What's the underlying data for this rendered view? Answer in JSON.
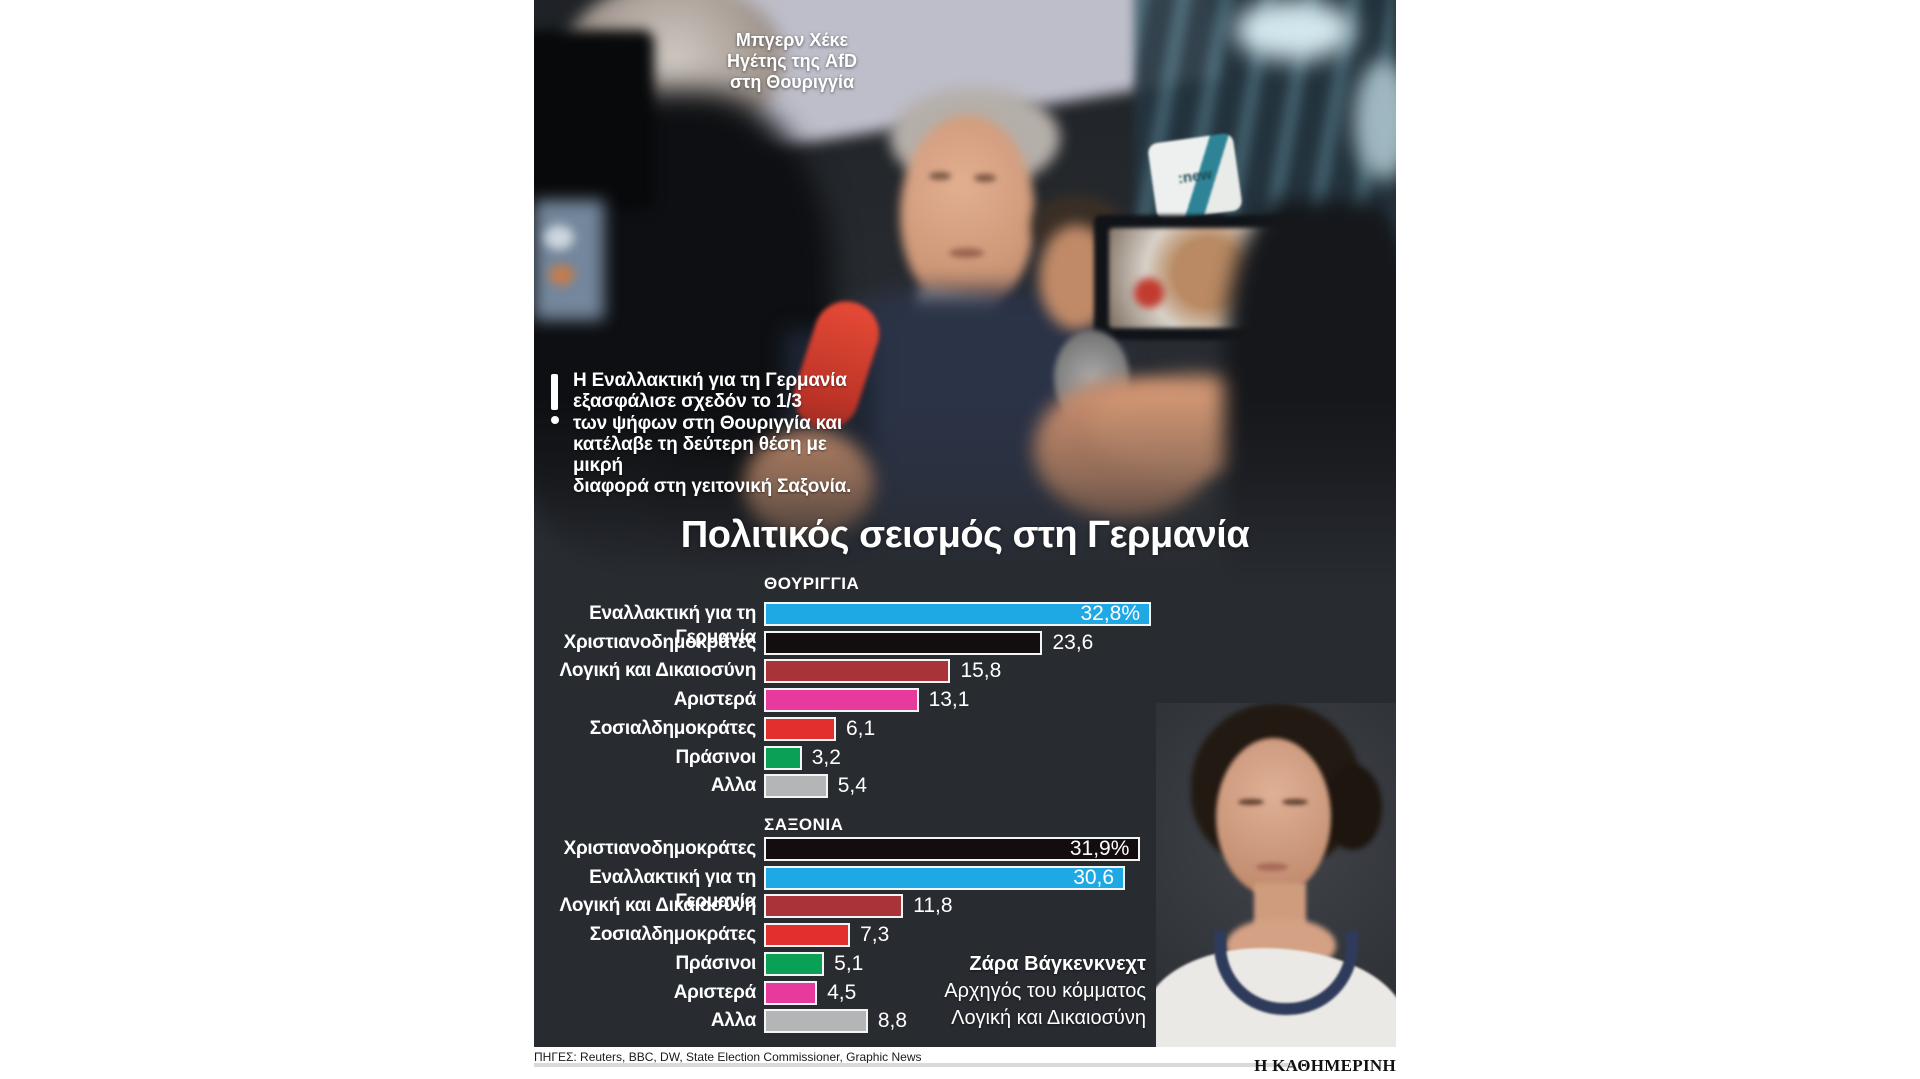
{
  "title": "Πολιτικός σεισμός στη Γερμανία",
  "photo": {
    "hocke_caption": {
      "line1": "Μπγερν Χέκε",
      "line2": "Ηγέτης της AfD",
      "line3": "στη Θουριγγία"
    },
    "annotation": {
      "line1": "Η Εναλλακτική για τη Γερμανία",
      "line2": "εξασφάλισε σχεδόν το 1/3",
      "line3": "των ψήφων στη Θουριγγία και",
      "line4": "κατέλαβε τη δεύτερη θέση με μικρή",
      "line5": "διαφορά στη γειτονική Σαξονία."
    },
    "wagenknecht_caption": {
      "line1": "Ζάρα Βάγκενκνεχτ",
      "line2": "Αρχηγός του κόμματος",
      "line3": "Λογική και Δικαιοσύνη"
    },
    "news_mic_text": ":new"
  },
  "chart_data": [
    {
      "type": "bar",
      "orientation": "horizontal",
      "region": "ΘΟΥΡΙΓΓΙΑ",
      "unit": "% of vote",
      "xlim": [
        0,
        33
      ],
      "rows": [
        {
          "party": "Εναλλακτική για τη Γερμανία",
          "value": 32.8,
          "label": "32,8%",
          "color": "#1fa9e4",
          "label_inside": true
        },
        {
          "party": "Χριστιανοδημοκράτες",
          "value": 23.6,
          "label": "23,6",
          "color": "#140d10",
          "label_inside": false
        },
        {
          "party": "Λογική και Δικαιοσύνη",
          "value": 15.8,
          "label": "15,8",
          "color": "#a8343a",
          "label_inside": false
        },
        {
          "party": "Αριστερά",
          "value": 13.1,
          "label": "13,1",
          "color": "#e83a9c",
          "label_inside": false
        },
        {
          "party": "Σοσιαλδημοκράτες",
          "value": 6.1,
          "label": "6,1",
          "color": "#e3302f",
          "label_inside": false
        },
        {
          "party": "Πράσινοι",
          "value": 3.2,
          "label": "3,2",
          "color": "#0aa157",
          "label_inside": false
        },
        {
          "party": "Αλλα",
          "value": 5.4,
          "label": "5,4",
          "color": "#b4b5b7",
          "label_inside": false
        }
      ]
    },
    {
      "type": "bar",
      "orientation": "horizontal",
      "region": "ΣΑΞΟΝΙΑ",
      "unit": "% of vote",
      "xlim": [
        0,
        33
      ],
      "rows": [
        {
          "party": "Χριστιανοδημοκράτες",
          "value": 31.9,
          "label": "31,9%",
          "color": "#140d10",
          "label_inside": true
        },
        {
          "party": "Εναλλακτική για τη Γερμανία",
          "value": 30.6,
          "label": "30,6",
          "color": "#1fa9e4",
          "label_inside": true
        },
        {
          "party": "Λογική και Δικαιοσύνη",
          "value": 11.8,
          "label": "11,8",
          "color": "#a8343a",
          "label_inside": false
        },
        {
          "party": "Σοσιαλδημοκράτες",
          "value": 7.3,
          "label": "7,3",
          "color": "#e3302f",
          "label_inside": false
        },
        {
          "party": "Πράσινοι",
          "value": 5.1,
          "label": "5,1",
          "color": "#0aa157",
          "label_inside": false
        },
        {
          "party": "Αριστερά",
          "value": 4.5,
          "label": "4,5",
          "color": "#e83a9c",
          "label_inside": false
        },
        {
          "party": "Αλλα",
          "value": 8.8,
          "label": "8,8",
          "color": "#b4b5b7",
          "label_inside": false
        }
      ]
    }
  ],
  "colors": {
    "afd_cyan": "#1fa9e4",
    "cdu_black": "#140d10",
    "bsw_darkred": "#a8343a",
    "linke_magenta": "#e83a9c",
    "spd_red": "#e3302f",
    "greens_green": "#0aa157",
    "other_gray": "#b4b5b7",
    "background_dark": "#282b30"
  },
  "footer": {
    "sources": "ΠΗΓΕΣ: Reuters, BBC, DW, State Election Commissioner, Graphic News",
    "brand": "Η ΚΑΘΗΜΕΡΙΝΗ"
  }
}
